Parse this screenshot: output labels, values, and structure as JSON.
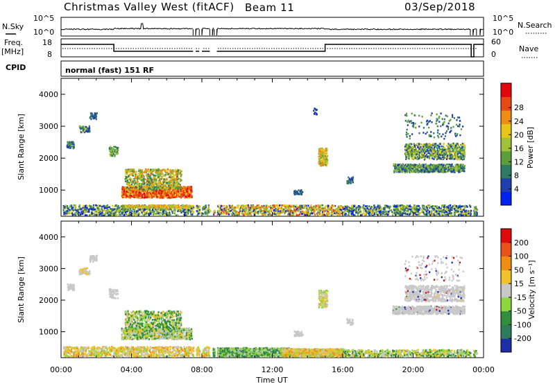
{
  "header": {
    "radar": "Christmas Valley West (fitACF)",
    "beam": "Beam 11",
    "date": "03/Sep/2018"
  },
  "params": {
    "nsky_label": "N.Sky",
    "nsky_ticks": [
      "10^5",
      "10^0"
    ],
    "nsearch_label": "N.Search",
    "nsearch_ticks": [
      "10^5",
      "10^0"
    ],
    "freq_label_1": "Freq.",
    "freq_label_2": "[MHz]",
    "freq_ticks": [
      "18",
      "8"
    ],
    "nave_label": "Nave",
    "nave_ticks": [
      "60",
      "0"
    ],
    "cpid_label": "CPID",
    "cpid_value": "normal (fast) 151 RF"
  },
  "chart_data": [
    {
      "type": "heatmap",
      "name": "power",
      "ylabel": "Slant Range [km]",
      "xlabel": "Time UT",
      "xlim_hours": [
        0,
        24
      ],
      "ylim_km": [
        180,
        4500
      ],
      "yticks": [
        "1000",
        "2000",
        "3000",
        "4000"
      ],
      "xticks": [
        "00:00",
        "04:00",
        "08:00",
        "12:00",
        "16:00",
        "20:00",
        "00:00"
      ],
      "colorbar": {
        "label": "Power [dB]",
        "ticks": [
          "4",
          "8",
          "12",
          "16",
          "20",
          "24",
          "28"
        ],
        "colors": [
          "#0022ee",
          "#1f3fae",
          "#2f7a62",
          "#5e9e3a",
          "#a0c23a",
          "#e6c619",
          "#ef8c16",
          "#e64a14",
          "#e0080a"
        ]
      },
      "echo_regions": [
        {
          "t0": 3.3,
          "t1": 7.5,
          "r0": 750,
          "r1": 1650,
          "level": "20-28 dB"
        },
        {
          "t0": 0.3,
          "t1": 2.0,
          "r0": 2300,
          "r1": 3400,
          "level": "8-16 dB"
        },
        {
          "t0": 14.6,
          "t1": 15.2,
          "r0": 1700,
          "r1": 2300,
          "level": "12-24 dB"
        },
        {
          "t0": 18.8,
          "t1": 22.9,
          "r0": 1500,
          "r1": 2500,
          "level": "8-16 dB"
        },
        {
          "t0": 0.0,
          "t1": 24.0,
          "r0": 180,
          "r1": 550,
          "level": "4-28 dB"
        }
      ]
    },
    {
      "type": "heatmap",
      "name": "velocity",
      "ylabel": "Slant Range [km]",
      "xlabel": "Time UT",
      "xlim_hours": [
        0,
        24
      ],
      "ylim_km": [
        180,
        4500
      ],
      "yticks": [
        "1000",
        "2000",
        "3000",
        "4000"
      ],
      "xticks": [
        "00:00",
        "04:00",
        "08:00",
        "12:00",
        "16:00",
        "20:00",
        "00:00"
      ],
      "colorbar": {
        "label": "Velocity [m s⁻¹]",
        "ticks": [
          "200",
          "100",
          "50",
          "15",
          "-15",
          "-50",
          "-100",
          "-200"
        ],
        "colors": [
          "#1c2fa8",
          "#2e7c5c",
          "#2f8f3c",
          "#8ed63c",
          "#c8c8c8",
          "#f2c22a",
          "#ef8d14",
          "#e7531a",
          "#e00a0a"
        ]
      },
      "echo_regions": [
        {
          "t0": 3.3,
          "t1": 7.5,
          "r0": 750,
          "r1": 1650,
          "level": "-50 to 50 m/s"
        },
        {
          "t0": 18.8,
          "t1": 22.9,
          "r0": 1500,
          "r1": 2500,
          "level": "-15 to 15 m/s"
        },
        {
          "t0": 8.5,
          "t1": 14.5,
          "r0": 180,
          "r1": 550,
          "level": "-15 to -100 m/s"
        },
        {
          "t0": 12.5,
          "t1": 16.0,
          "r0": 180,
          "r1": 550,
          "level": "15 to 50 m/s"
        }
      ]
    }
  ]
}
